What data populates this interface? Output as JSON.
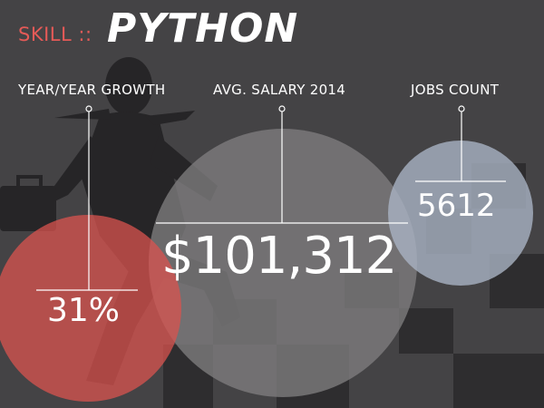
{
  "header": {
    "prefix": "SKILL",
    "separator": "::",
    "skill_name": "PYTHON"
  },
  "metrics": [
    {
      "label": "YEAR/YEAR GROWTH",
      "value": "31%"
    },
    {
      "label": "AVG. SALARY 2014",
      "value": "$101,312"
    },
    {
      "label": "JOBS COUNT",
      "value": "5612"
    }
  ],
  "colors": {
    "background": "#444345",
    "accent_red": "#d9534f",
    "circle_gray": "#7f7e7f",
    "circle_blue": "#a9b3c3",
    "text": "#ffffff"
  }
}
